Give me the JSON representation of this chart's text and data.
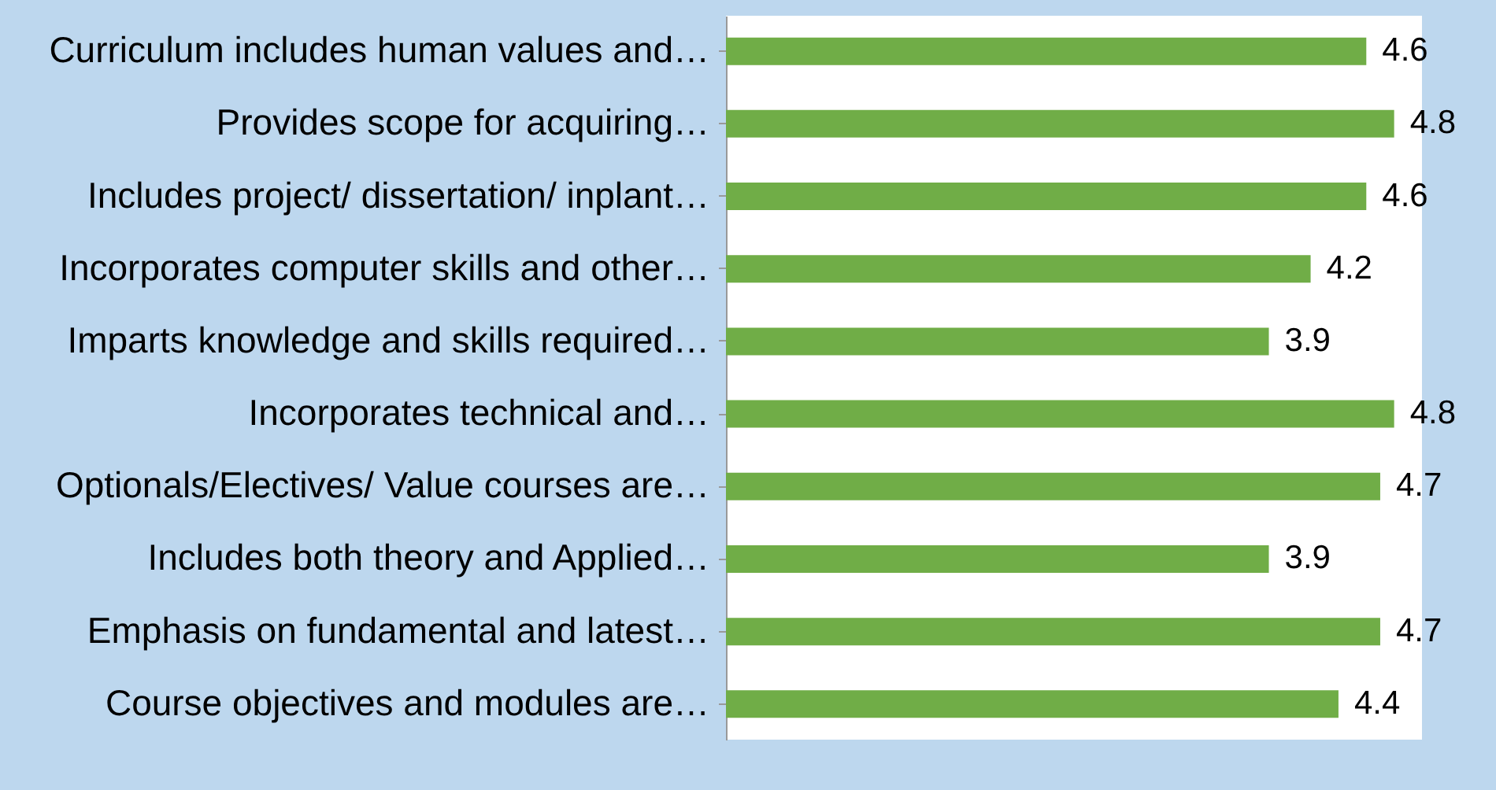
{
  "chart_data": {
    "type": "bar",
    "orientation": "horizontal",
    "data_labels": true,
    "categories": [
      "Curriculum includes human values and…",
      "Provides scope for acquiring…",
      "Includes project/ dissertation/ inplant…",
      "Incorporates computer skills and other…",
      "Imparts knowledge and skills required…",
      "Incorporates technical and…",
      "Optionals/Electives/ Value courses are…",
      "Includes both theory and Applied…",
      "Emphasis on fundamental and latest…",
      "Course objectives and modules are…"
    ],
    "values": [
      4.6,
      4.8,
      4.6,
      4.2,
      3.9,
      4.8,
      4.7,
      3.9,
      4.7,
      4.4
    ],
    "color": "#70ad47"
  }
}
